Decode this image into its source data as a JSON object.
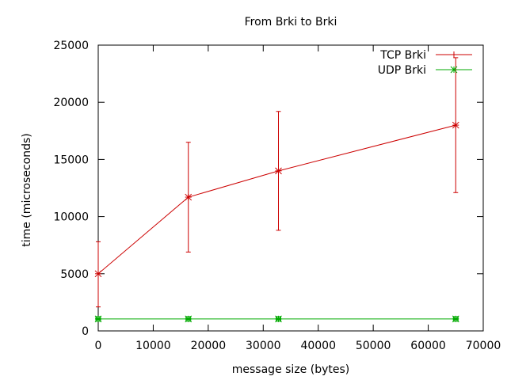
{
  "chart_data": {
    "type": "line",
    "title": "From Brki to Brki",
    "xlabel": "message size (bytes)",
    "ylabel": "time (microseconds)",
    "xlim": [
      0,
      70000
    ],
    "ylim": [
      0,
      25000
    ],
    "xticks": [
      0,
      10000,
      20000,
      30000,
      40000,
      50000,
      60000,
      70000
    ],
    "yticks": [
      0,
      5000,
      10000,
      15000,
      20000,
      25000
    ],
    "grid": false,
    "legend_position": "top-right",
    "series": [
      {
        "name": "TCP Brki",
        "color": "#cc0000",
        "marker": "star",
        "x": [
          0,
          16384,
          32768,
          65000
        ],
        "y": [
          5000,
          11700,
          14000,
          18000
        ],
        "err_low": [
          2100,
          6900,
          8800,
          12100
        ],
        "err_high": [
          7800,
          16500,
          19200,
          23900
        ]
      },
      {
        "name": "UDP Brki",
        "color": "#00aa00",
        "marker": "star-square",
        "x": [
          0,
          16384,
          32768,
          65000
        ],
        "y": [
          1050,
          1050,
          1050,
          1050
        ],
        "err_low": [
          1000,
          1000,
          1000,
          1000
        ],
        "err_high": [
          1100,
          1100,
          1100,
          1100
        ]
      }
    ]
  }
}
